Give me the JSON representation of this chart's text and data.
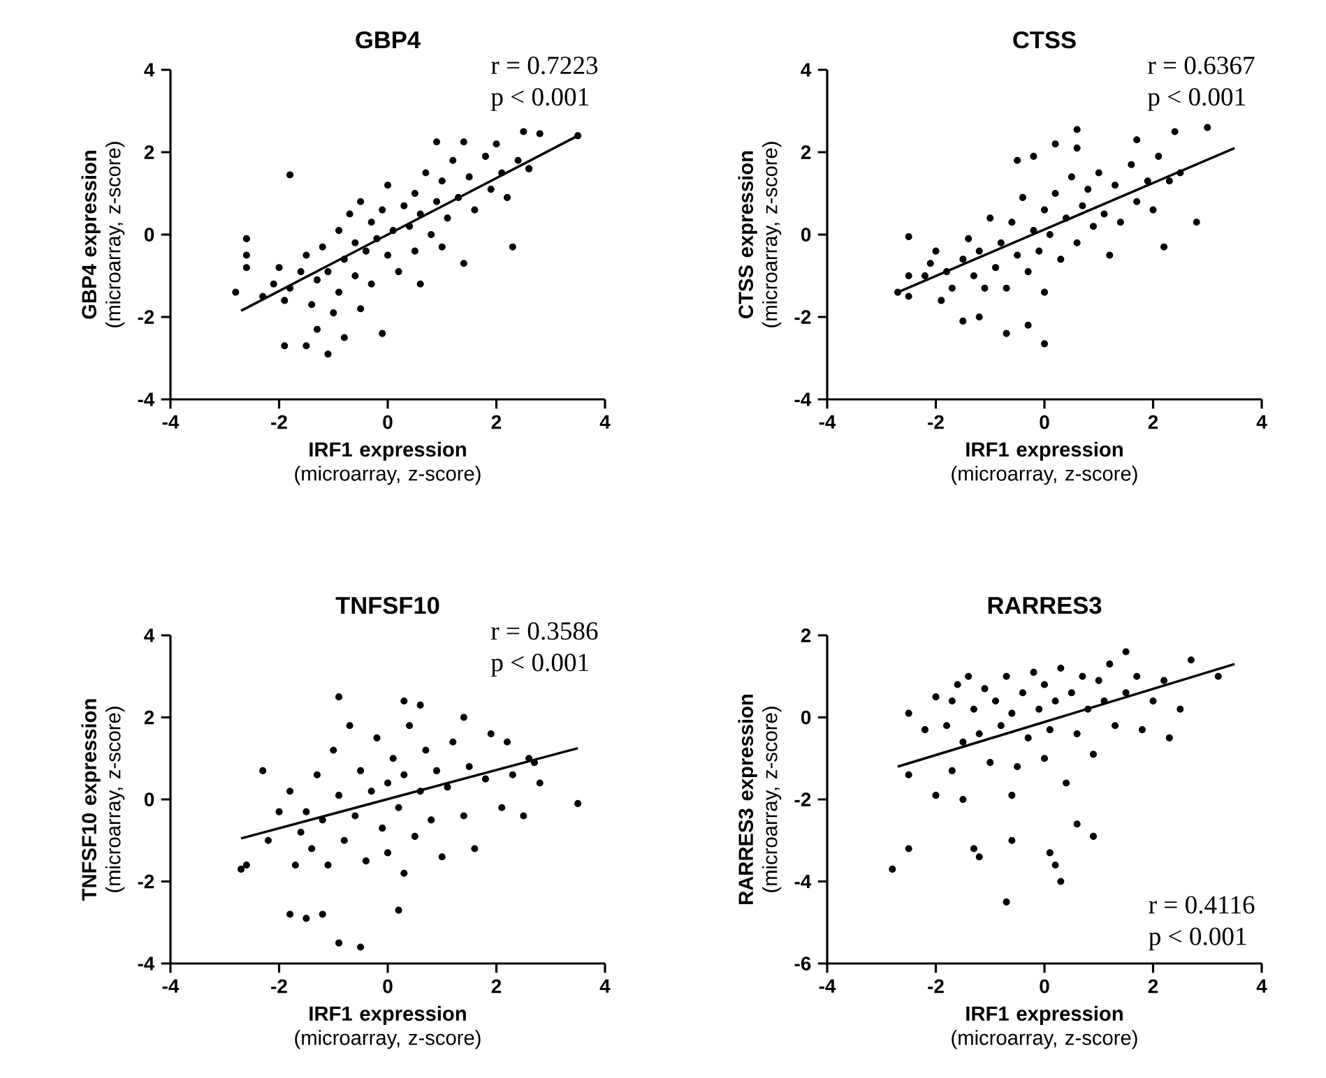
{
  "chart_data": [
    {
      "type": "scatter",
      "title": "GBP4",
      "xlabel": "**IRF1 expression** (microarray, z-score)",
      "ylabel": "**GBP4 expression** (microarray, z-score)",
      "annotations": [
        "r = 0.7223",
        "p < 0.001"
      ],
      "xlim": [
        -4,
        4
      ],
      "ylim": [
        -4,
        4
      ],
      "xticks": [
        -4,
        -2,
        0,
        2,
        4
      ],
      "yticks": [
        -4,
        -2,
        0,
        2,
        4
      ],
      "marker": "circle",
      "series": [
        {
          "color": "#000000",
          "x": [
            -2.8,
            -2.6,
            -2.6,
            -2.6,
            -2.1,
            -1.9,
            -1.8,
            -1.9,
            -1.5,
            -1.3,
            -1.1,
            -0.8,
            -0.1,
            0.9,
            1.4,
            2.0,
            2.5,
            2.8,
            3.5,
            2.6,
            2.3,
            1.0,
            0.6,
            -2.3,
            -2.0,
            -1.8,
            -1.6,
            -1.5,
            -1.4,
            -1.3,
            -1.2,
            -1.1,
            -1.0,
            -0.9,
            -0.9,
            -0.8,
            -0.7,
            -0.6,
            -0.6,
            -0.5,
            -0.5,
            -0.4,
            -0.3,
            -0.3,
            -0.2,
            -0.1,
            0.0,
            0.0,
            0.1,
            0.2,
            0.3,
            0.4,
            0.5,
            0.5,
            0.6,
            0.7,
            0.8,
            0.9,
            1.0,
            1.1,
            1.2,
            1.3,
            1.4,
            1.5,
            1.6,
            1.8,
            1.9,
            2.1,
            2.2,
            2.4,
            2.6
          ],
          "values": [
            -1.4,
            -0.1,
            -0.5,
            -0.8,
            -1.2,
            -1.6,
            1.45,
            -2.7,
            -2.7,
            -2.3,
            -2.9,
            -2.5,
            -2.4,
            2.25,
            2.25,
            2.2,
            2.5,
            2.45,
            2.4,
            1.6,
            -0.3,
            -0.3,
            -1.2,
            -1.5,
            -0.8,
            -1.3,
            -0.9,
            -0.5,
            -1.7,
            -1.1,
            -0.3,
            -0.9,
            -1.9,
            0.1,
            -1.4,
            -0.6,
            0.5,
            -0.2,
            -1.0,
            -1.8,
            0.8,
            -0.4,
            0.3,
            -1.2,
            -0.1,
            0.6,
            -0.5,
            1.2,
            0.1,
            -0.9,
            0.7,
            0.2,
            1.0,
            -0.4,
            0.5,
            1.5,
            0.0,
            0.8,
            1.3,
            0.4,
            1.8,
            0.9,
            -0.7,
            1.4,
            0.6,
            1.9,
            1.1,
            1.5,
            0.9,
            1.8,
            1.6
          ]
        },
        {
          "type": "line",
          "color": "#000000",
          "marker": "none",
          "x": [
            -2.7,
            3.5
          ],
          "values": [
            -1.85,
            2.4
          ]
        }
      ]
    },
    {
      "type": "scatter",
      "title": "CTSS",
      "xlabel": "**IRF1 expression** (microarray, z-score)",
      "ylabel": "**CTSS expression** (microarray, z-score)",
      "annotations": [
        "r = 0.6367",
        "p < 0.001"
      ],
      "xlim": [
        -4,
        4
      ],
      "ylim": [
        -4,
        4
      ],
      "xticks": [
        -4,
        -2,
        0,
        2,
        4
      ],
      "yticks": [
        -4,
        -2,
        0,
        2,
        4
      ],
      "marker": "circle",
      "series": [
        {
          "color": "#000000",
          "x": [
            -2.7,
            -2.5,
            -2.5,
            -2.5,
            -2.1,
            -1.9,
            -1.5,
            -1.2,
            -0.7,
            -0.3,
            0.0,
            -0.2,
            -0.5,
            0.2,
            0.6,
            0.6,
            1.7,
            2.4,
            3.0,
            2.8,
            2.2,
            -2.2,
            -2.0,
            -1.8,
            -1.7,
            -1.5,
            -1.4,
            -1.3,
            -1.2,
            -1.1,
            -1.0,
            -0.9,
            -0.8,
            -0.7,
            -0.6,
            -0.5,
            -0.4,
            -0.3,
            -0.2,
            -0.1,
            0.0,
            0.0,
            0.1,
            0.2,
            0.3,
            0.4,
            0.5,
            0.6,
            0.7,
            0.8,
            0.9,
            1.0,
            1.1,
            1.2,
            1.3,
            1.4,
            1.6,
            1.7,
            1.9,
            2.0,
            2.1,
            2.3,
            2.5
          ],
          "values": [
            -1.4,
            -0.05,
            -1.0,
            -1.5,
            -0.7,
            -1.6,
            -2.1,
            -2.0,
            -2.4,
            -2.2,
            -2.65,
            1.9,
            1.8,
            2.2,
            2.55,
            2.1,
            2.3,
            2.5,
            2.6,
            0.3,
            -0.3,
            -1.0,
            -0.4,
            -0.9,
            -1.3,
            -0.6,
            -0.1,
            -1.0,
            -0.4,
            -1.3,
            0.4,
            -0.8,
            -0.2,
            -1.3,
            0.3,
            -0.5,
            0.9,
            -0.9,
            0.1,
            -0.4,
            0.6,
            -1.4,
            0.0,
            1.0,
            -0.6,
            0.4,
            1.4,
            -0.2,
            0.7,
            1.1,
            0.2,
            1.5,
            0.5,
            -0.5,
            1.2,
            0.3,
            1.7,
            0.8,
            1.3,
            0.6,
            1.9,
            1.3,
            1.5
          ]
        },
        {
          "type": "line",
          "color": "#000000",
          "marker": "none",
          "x": [
            -2.7,
            3.5
          ],
          "values": [
            -1.4,
            2.1
          ]
        }
      ]
    },
    {
      "type": "scatter",
      "title": "TNFSF10",
      "xlabel": "**IRF1 expression** (microarray, z-score)",
      "ylabel": "**TNFSF10 expression** (microarray, z-score)",
      "annotations": [
        "r = 0.3586",
        "p < 0.001"
      ],
      "xlim": [
        -4,
        4
      ],
      "ylim": [
        -4,
        4
      ],
      "xticks": [
        -4,
        -2,
        0,
        2,
        4
      ],
      "yticks": [
        -4,
        -2,
        0,
        2,
        4
      ],
      "marker": "circle",
      "series": [
        {
          "color": "#000000",
          "x": [
            -2.7,
            -2.6,
            -2.3,
            -2.2,
            -1.8,
            -1.5,
            -1.2,
            -1.7,
            -0.9,
            -0.5,
            -0.9,
            0.3,
            0.6,
            1.4,
            2.2,
            2.6,
            3.5,
            2.8,
            0.2,
            0.3,
            -2.0,
            -1.8,
            -1.6,
            -1.5,
            -1.4,
            -1.3,
            -1.2,
            -1.1,
            -1.0,
            -0.9,
            -0.8,
            -0.7,
            -0.6,
            -0.5,
            -0.4,
            -0.3,
            -0.2,
            -0.1,
            0.0,
            0.0,
            0.1,
            0.2,
            0.3,
            0.4,
            0.5,
            0.6,
            0.7,
            0.8,
            0.9,
            1.0,
            1.1,
            1.2,
            1.4,
            1.5,
            1.6,
            1.8,
            1.9,
            2.1,
            2.3,
            2.5,
            2.7
          ],
          "values": [
            -1.7,
            -1.6,
            0.7,
            -1.0,
            -2.8,
            -2.9,
            -2.8,
            -1.6,
            -3.5,
            -3.6,
            2.5,
            2.4,
            2.3,
            2.0,
            1.4,
            1.0,
            -0.1,
            0.4,
            -2.7,
            -1.8,
            -0.3,
            0.2,
            -0.8,
            -0.3,
            -1.2,
            0.6,
            -0.5,
            -1.6,
            1.2,
            0.1,
            -1.0,
            1.8,
            -0.4,
            0.7,
            -1.5,
            0.2,
            1.5,
            -0.7,
            0.4,
            -1.3,
            1.0,
            -0.2,
            0.6,
            1.8,
            -0.9,
            0.2,
            1.2,
            -0.5,
            0.7,
            -1.4,
            0.3,
            1.4,
            -0.4,
            0.8,
            -1.2,
            0.5,
            1.6,
            -0.2,
            0.6,
            -0.4,
            0.9
          ]
        },
        {
          "type": "line",
          "color": "#000000",
          "marker": "none",
          "x": [
            -2.7,
            3.5
          ],
          "values": [
            -0.95,
            1.25
          ]
        }
      ]
    },
    {
      "type": "scatter",
      "title": "RARRES3",
      "xlabel": "**IRF1 expression** (microarray, z-score)",
      "ylabel": "**RARRES3 expression** (microarray, z-score)",
      "annotations": [
        "r = 0.4116",
        "p < 0.001"
      ],
      "xlim": [
        -4,
        4
      ],
      "ylim": [
        -6,
        2
      ],
      "xticks": [
        -4,
        -2,
        0,
        2,
        4
      ],
      "yticks": [
        -6,
        -4,
        -2,
        0,
        2
      ],
      "marker": "circle",
      "series": [
        {
          "color": "#000000",
          "x": [
            -2.8,
            -2.5,
            -2.5,
            -2.5,
            -2.0,
            -1.7,
            -1.3,
            -1.2,
            -1.5,
            -0.7,
            -0.6,
            -0.6,
            0.1,
            0.2,
            0.3,
            0.6,
            0.9,
            1.5,
            2.7,
            3.2,
            -2.2,
            -2.0,
            -1.8,
            -1.7,
            -1.6,
            -1.5,
            -1.4,
            -1.3,
            -1.2,
            -1.1,
            -1.0,
            -0.9,
            -0.8,
            -0.7,
            -0.6,
            -0.5,
            -0.4,
            -0.3,
            -0.2,
            -0.1,
            0.0,
            0.0,
            0.1,
            0.2,
            0.3,
            0.4,
            0.5,
            0.6,
            0.7,
            0.8,
            0.9,
            1.0,
            1.1,
            1.2,
            1.3,
            1.5,
            1.7,
            1.8,
            2.0,
            2.2,
            2.5,
            2.3
          ],
          "values": [
            -3.7,
            -3.2,
            0.1,
            -1.4,
            -1.9,
            0.4,
            -3.2,
            -3.4,
            -2.0,
            -4.5,
            -3.0,
            -1.9,
            -3.3,
            -3.6,
            -4.0,
            -2.6,
            -2.9,
            1.6,
            1.4,
            1.0,
            -0.3,
            0.5,
            -0.2,
            -1.3,
            0.8,
            -0.6,
            1.0,
            0.2,
            -0.4,
            0.7,
            -1.1,
            0.4,
            -0.2,
            1.0,
            0.1,
            -1.2,
            0.6,
            -0.5,
            1.1,
            0.2,
            -1.0,
            0.8,
            -0.3,
            0.4,
            1.2,
            -1.6,
            0.6,
            -0.4,
            1.0,
            0.2,
            -0.9,
            0.9,
            0.4,
            1.3,
            -0.2,
            0.6,
            1.0,
            -0.3,
            0.4,
            0.9,
            0.2,
            -0.5
          ]
        },
        {
          "type": "line",
          "color": "#000000",
          "marker": "none",
          "x": [
            -2.7,
            3.5
          ],
          "values": [
            -1.2,
            1.3
          ]
        }
      ]
    }
  ]
}
